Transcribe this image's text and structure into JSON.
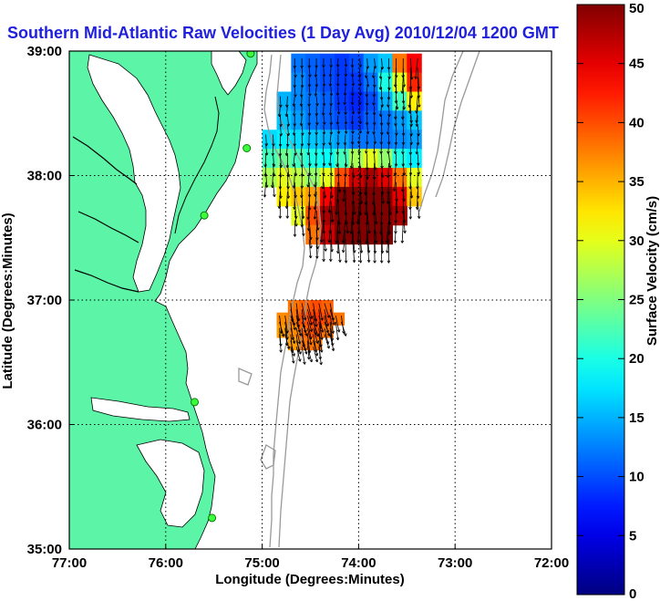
{
  "chart_data": {
    "type": "heatmap",
    "title": "Southern Mid-Atlantic Raw Velocities (1 Day Avg) 2010/12/04 1200 GMT",
    "xlabel": "Longitude (Degrees:Minutes)",
    "ylabel": "Latitude (Degrees:Minutes)",
    "colorbar_label": "Surface Velocity (cm/s)",
    "x_ticks": [
      "77:00",
      "76:00",
      "75:00",
      "74:00",
      "73:00",
      "72:00"
    ],
    "y_ticks": [
      "39:00",
      "38:00",
      "37:00",
      "36:00",
      "35:00"
    ],
    "colorbar_ticks": [
      "0",
      "5",
      "10",
      "15",
      "20",
      "25",
      "30",
      "35",
      "40",
      "45",
      "50"
    ],
    "xlim": [
      -77,
      -72
    ],
    "ylim": [
      35,
      39
    ],
    "clim": [
      0,
      50
    ],
    "grid": true,
    "land_color": "#5cf5a8",
    "vector_color": "#000000",
    "stations": [
      {
        "lon": -75.12,
        "lat": 38.98
      },
      {
        "lon": -75.16,
        "lat": 38.22
      },
      {
        "lon": -75.6,
        "lat": 37.68
      },
      {
        "lon": -75.7,
        "lat": 36.18
      },
      {
        "lon": -75.52,
        "lat": 35.25
      }
    ],
    "regions": [
      {
        "name": "north-field",
        "lon_range": [
          -75.0,
          -73.2
        ],
        "lat_range": [
          37.45,
          38.98
        ],
        "cells": [
          [
            0,
            0,
            12,
            11,
            10,
            9,
            10,
            14,
            16,
            38,
            44,
            0
          ],
          [
            0,
            0,
            13,
            11,
            10,
            9,
            9,
            12,
            20,
            30,
            42,
            0
          ],
          [
            0,
            15,
            13,
            12,
            11,
            9,
            8,
            10,
            15,
            22,
            32,
            0
          ],
          [
            0,
            16,
            14,
            12,
            11,
            10,
            9,
            11,
            12,
            14,
            16,
            0
          ],
          [
            17,
            18,
            17,
            16,
            15,
            14,
            12,
            12,
            12,
            13,
            14,
            0
          ],
          [
            22,
            24,
            22,
            20,
            19,
            22,
            27,
            30,
            26,
            20,
            18,
            0
          ],
          [
            27,
            30,
            28,
            26,
            30,
            40,
            46,
            48,
            45,
            38,
            30,
            0
          ],
          [
            0,
            32,
            34,
            36,
            44,
            50,
            50,
            50,
            50,
            45,
            34,
            0
          ],
          [
            0,
            0,
            30,
            40,
            48,
            50,
            50,
            50,
            50,
            48,
            0,
            0
          ],
          [
            0,
            0,
            0,
            38,
            46,
            50,
            50,
            50,
            50,
            0,
            0,
            0
          ]
        ]
      },
      {
        "name": "south-field",
        "lon_range": [
          -74.85,
          -74.15
        ],
        "lat_range": [
          36.6,
          37.0
        ],
        "cells": [
          [
            0,
            38,
            39,
            40,
            39,
            0
          ],
          [
            37,
            38,
            40,
            41,
            40,
            38
          ],
          [
            36,
            37,
            39,
            40,
            38,
            0
          ],
          [
            0,
            36,
            38,
            38,
            0,
            0
          ]
        ]
      }
    ]
  }
}
